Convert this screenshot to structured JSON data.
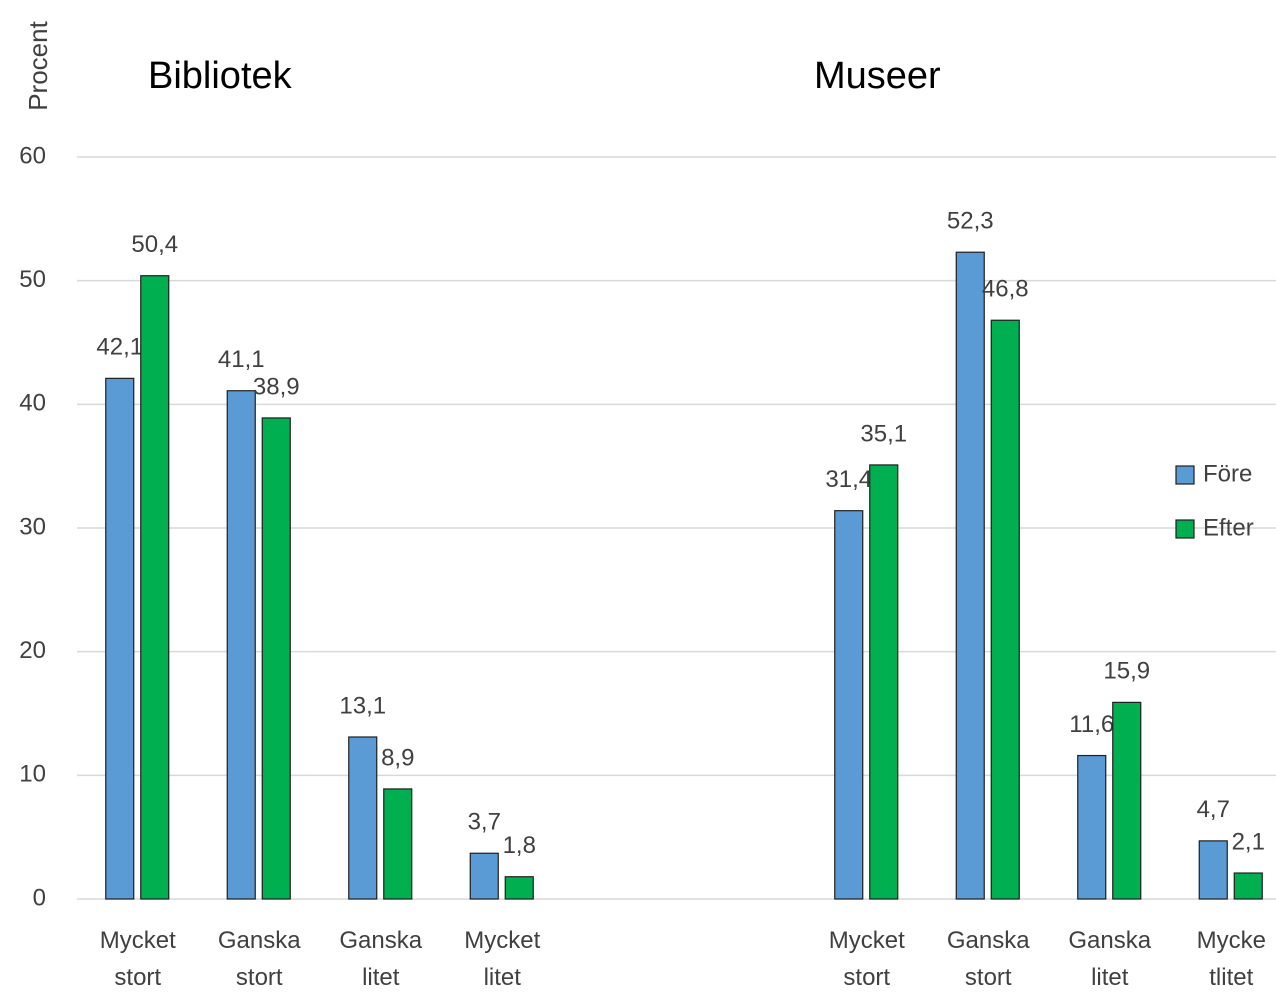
{
  "chart_data": {
    "type": "bar",
    "y_label": "Procent",
    "group_labels": [
      "Bibliotek",
      "Museer"
    ],
    "categories": [
      "Mycket stort",
      "Ganska stort",
      "Ganska litet",
      "Mycket litet",
      null,
      null,
      "Mycket stort",
      "Ganska stort",
      "Ganska litet",
      "Mycke tlitet"
    ],
    "series": [
      {
        "name": "Före",
        "color": "#5b9bd5",
        "values": [
          42.1,
          41.1,
          13.1,
          3.7,
          null,
          null,
          31.4,
          52.3,
          11.6,
          4.7
        ],
        "value_labels": [
          "42,1",
          "41,1",
          "13,1",
          "3,7",
          null,
          null,
          "31,4",
          "52,3",
          "11,6",
          "4,7"
        ]
      },
      {
        "name": "Efter",
        "color": "#00b050",
        "values": [
          50.4,
          38.9,
          8.9,
          1.8,
          null,
          null,
          35.1,
          46.8,
          15.9,
          2.1
        ],
        "value_labels": [
          "50,4",
          "38,9",
          "8,9",
          "1,8",
          null,
          null,
          "35,1",
          "46,8",
          "15,9",
          "2,1"
        ]
      }
    ],
    "ylim": [
      0,
      60
    ],
    "yticks": [
      0,
      10,
      20,
      30,
      40,
      50,
      60
    ],
    "grid": true,
    "legend": "right"
  }
}
